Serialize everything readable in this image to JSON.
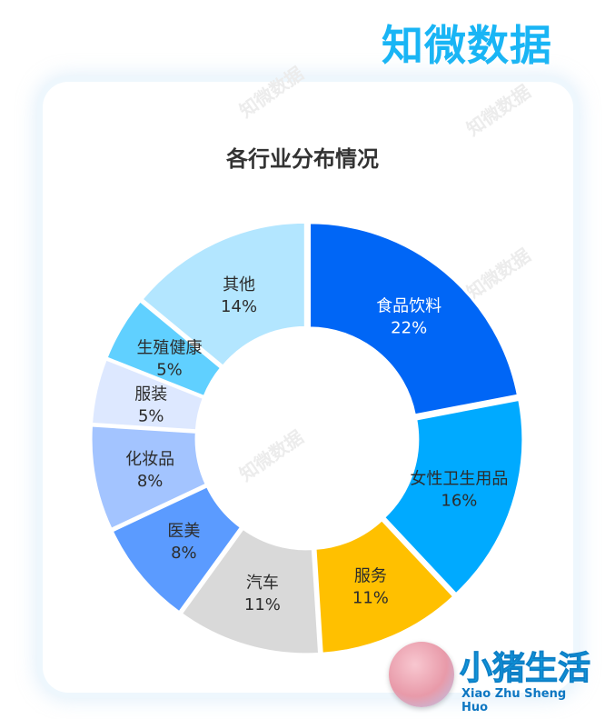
{
  "brand": "知微数据",
  "watermark": "知微数据",
  "logo": {
    "name": "小猪生活",
    "subtitle": "Xiao Zhu Sheng Huo"
  },
  "chart_data": {
    "type": "pie",
    "title": "各行业分布情况",
    "donut": true,
    "slices": [
      {
        "label": "食品饮料",
        "value": 22,
        "value_label": "22%",
        "color": "#0066f6"
      },
      {
        "label": "女性卫生用品",
        "value": 16,
        "value_label": "16%",
        "color": "#00aaff"
      },
      {
        "label": "服务",
        "value": 11,
        "value_label": "11%",
        "color": "#ffc000"
      },
      {
        "label": "汽车",
        "value": 11,
        "value_label": "11%",
        "color": "#d9d9d9"
      },
      {
        "label": "医美",
        "value": 8,
        "value_label": "8%",
        "color": "#5b9bff"
      },
      {
        "label": "化妆品",
        "value": 8,
        "value_label": "8%",
        "color": "#a3c4ff"
      },
      {
        "label": "服装",
        "value": 5,
        "value_label": "5%",
        "color": "#dde8ff"
      },
      {
        "label": "生殖健康",
        "value": 5,
        "value_label": "5%",
        "color": "#60d0ff"
      },
      {
        "label": "其他",
        "value": 14,
        "value_label": "14%",
        "color": "#b3e6ff"
      }
    ]
  }
}
